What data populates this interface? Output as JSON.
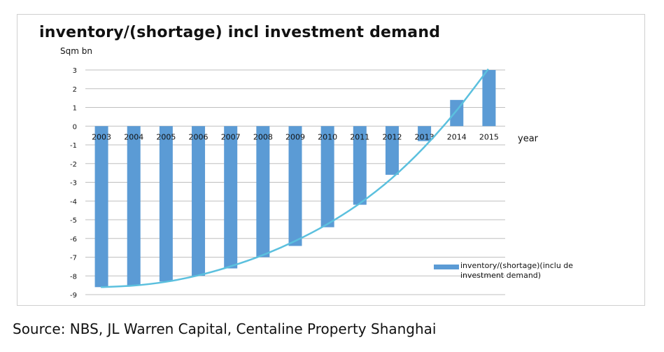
{
  "chart_data": {
    "type": "bar",
    "title": "inventory/(shortage) incl investment demand",
    "ylabel": "Sqm bn",
    "xlabel": "year",
    "categories": [
      "2003",
      "2004",
      "2005",
      "2006",
      "2007",
      "2008",
      "2009",
      "2010",
      "2011",
      "2012",
      "2013",
      "2014",
      "2015"
    ],
    "series": [
      {
        "name": "inventory/(shortage)(include investment demand)",
        "values": [
          -8.6,
          -8.5,
          -8.3,
          -8.0,
          -7.6,
          -7.0,
          -6.4,
          -5.4,
          -4.2,
          -2.6,
          -0.8,
          1.4,
          3.0
        ],
        "color": "#5b9bd5"
      }
    ],
    "trendline": {
      "values": [
        -8.6,
        -8.52,
        -8.32,
        -7.98,
        -7.5,
        -6.9,
        -6.15,
        -5.25,
        -4.15,
        -2.8,
        -1.15,
        0.8,
        3.05
      ],
      "color": "#5bc0de"
    },
    "ylim": [
      -9,
      3
    ],
    "yticks": [
      3,
      2,
      1,
      0,
      -1,
      -2,
      -3,
      -4,
      -5,
      -6,
      -7,
      -8,
      -9
    ],
    "grid": true,
    "legend_position": "bottom-right"
  },
  "legend_label": "inventory/(shortage)(inclu de investment demand)",
  "source": "Source: NBS, JL Warren Capital, Centaline Property Shanghai"
}
